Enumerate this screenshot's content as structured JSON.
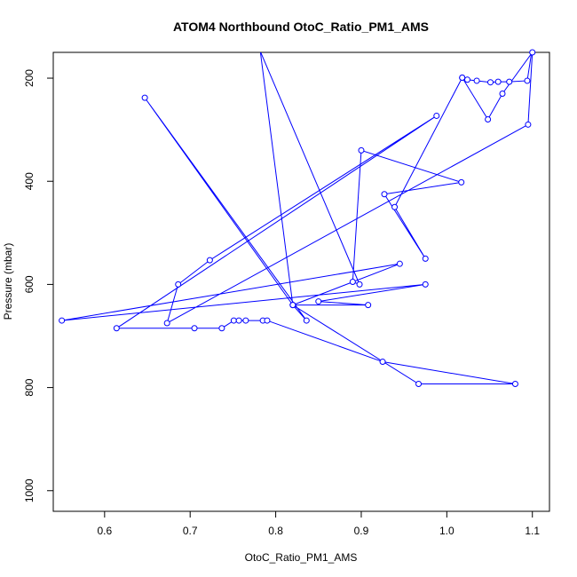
{
  "chart_data": {
    "type": "line",
    "title": "ATOM4 Northbound OtoC_Ratio_PM1_AMS",
    "xlabel": "OtoC_Ratio_PM1_AMS",
    "ylabel": "Pressure (mbar)",
    "x_ticks": [
      "0.6",
      "0.7",
      "0.8",
      "0.9",
      "1.0",
      "1.1"
    ],
    "y_ticks": [
      "200",
      "400",
      "600",
      "800",
      "1000"
    ],
    "xlim": [
      0.54,
      1.12
    ],
    "ylim": [
      1040,
      150
    ],
    "y_reversed": true,
    "grid": false,
    "series": [
      {
        "color": "#0000ff",
        "marker": "open-circle",
        "points": [
          [
            1.1,
            140
          ],
          [
            1.094,
            205
          ],
          [
            1.073,
            207
          ],
          [
            1.06,
            207
          ],
          [
            1.051,
            208
          ],
          [
            1.035,
            205
          ],
          [
            1.024,
            203
          ],
          [
            1.018,
            199
          ],
          [
            1.048,
            280
          ],
          [
            1.065,
            230
          ],
          [
            1.1,
            150
          ],
          [
            1.095,
            290
          ],
          [
            0.673,
            675
          ],
          [
            0.686,
            600
          ],
          [
            0.723,
            553
          ],
          [
            0.988,
            273
          ],
          [
            0.614,
            685
          ],
          [
            0.705,
            685
          ],
          [
            0.737,
            685
          ],
          [
            0.751,
            670
          ],
          [
            0.757,
            670
          ],
          [
            0.765,
            670
          ],
          [
            0.785,
            670
          ],
          [
            0.79,
            670
          ],
          [
            0.925,
            750
          ],
          [
            1.08,
            793
          ],
          [
            0.967,
            793
          ],
          [
            0.82,
            640
          ],
          [
            0.647,
            238
          ],
          [
            0.836,
            670
          ],
          [
            0.82,
            640
          ],
          [
            0.908,
            640
          ],
          [
            0.85,
            633
          ],
          [
            0.975,
            600
          ],
          [
            0.55,
            670
          ],
          [
            0.945,
            560
          ],
          [
            0.82,
            640
          ],
          [
            0.782,
            148
          ],
          [
            0.898,
            600
          ],
          [
            0.89,
            595
          ],
          [
            0.9,
            340
          ],
          [
            1.017,
            402
          ],
          [
            0.927,
            425
          ],
          [
            0.975,
            550
          ],
          [
            0.939,
            450
          ],
          [
            1.018,
            199
          ]
        ]
      }
    ]
  }
}
